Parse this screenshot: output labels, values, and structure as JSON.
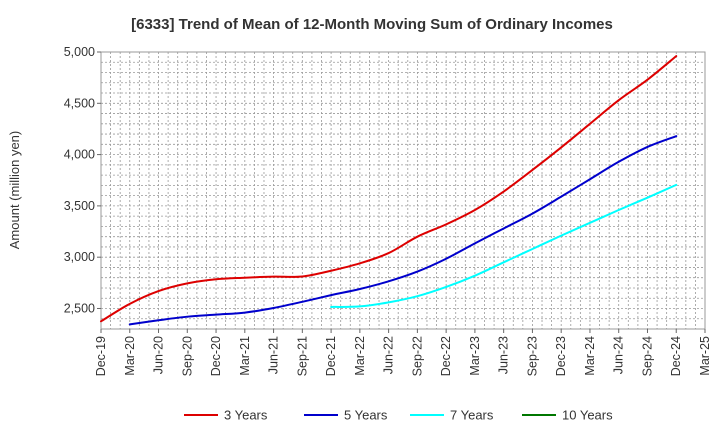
{
  "chart_data": {
    "type": "line",
    "title": "[6333]  Trend of Mean of 12-Month Moving Sum of Ordinary Incomes",
    "xlabel": "",
    "ylabel": "Amount (million yen)",
    "ylim": [
      2300,
      5000
    ],
    "y_ticks": [
      2500,
      3000,
      3500,
      4000,
      4500,
      5000
    ],
    "y_tick_labels": [
      "2,500",
      "3,000",
      "3,500",
      "4,000",
      "4,500",
      "5,000"
    ],
    "x_tick_labels": [
      "Dec-19",
      "Mar-20",
      "Jun-20",
      "Sep-20",
      "Dec-20",
      "Mar-21",
      "Jun-21",
      "Sep-21",
      "Dec-21",
      "Mar-22",
      "Jun-22",
      "Sep-22",
      "Dec-22",
      "Mar-23",
      "Jun-23",
      "Sep-23",
      "Dec-23",
      "Mar-24",
      "Jun-24",
      "Sep-24",
      "Dec-24",
      "Mar-25"
    ],
    "grid": true,
    "legend_position": "bottom",
    "series": [
      {
        "name": "3 Years",
        "color": "#dd0000",
        "start_index": 0,
        "values": [
          2375,
          2545,
          2670,
          2745,
          2785,
          2800,
          2810,
          2812,
          2868,
          2940,
          3040,
          3200,
          3320,
          3460,
          3640,
          3850,
          4070,
          4300,
          4530,
          4730,
          4960
        ]
      },
      {
        "name": "5 Years",
        "color": "#0000cc",
        "start_index": 1,
        "values": [
          2345,
          2385,
          2420,
          2440,
          2460,
          2505,
          2565,
          2630,
          2690,
          2765,
          2860,
          2985,
          3135,
          3280,
          3425,
          3590,
          3760,
          3930,
          4075,
          4180
        ]
      },
      {
        "name": "7 Years",
        "color": "#00ffff",
        "start_index": 8,
        "values": [
          2515,
          2520,
          2560,
          2620,
          2710,
          2820,
          2950,
          3080,
          3210,
          3335,
          3460,
          3580,
          3705
        ]
      },
      {
        "name": "10 Years",
        "color": "#007700",
        "start_index": 0,
        "values": []
      }
    ]
  }
}
